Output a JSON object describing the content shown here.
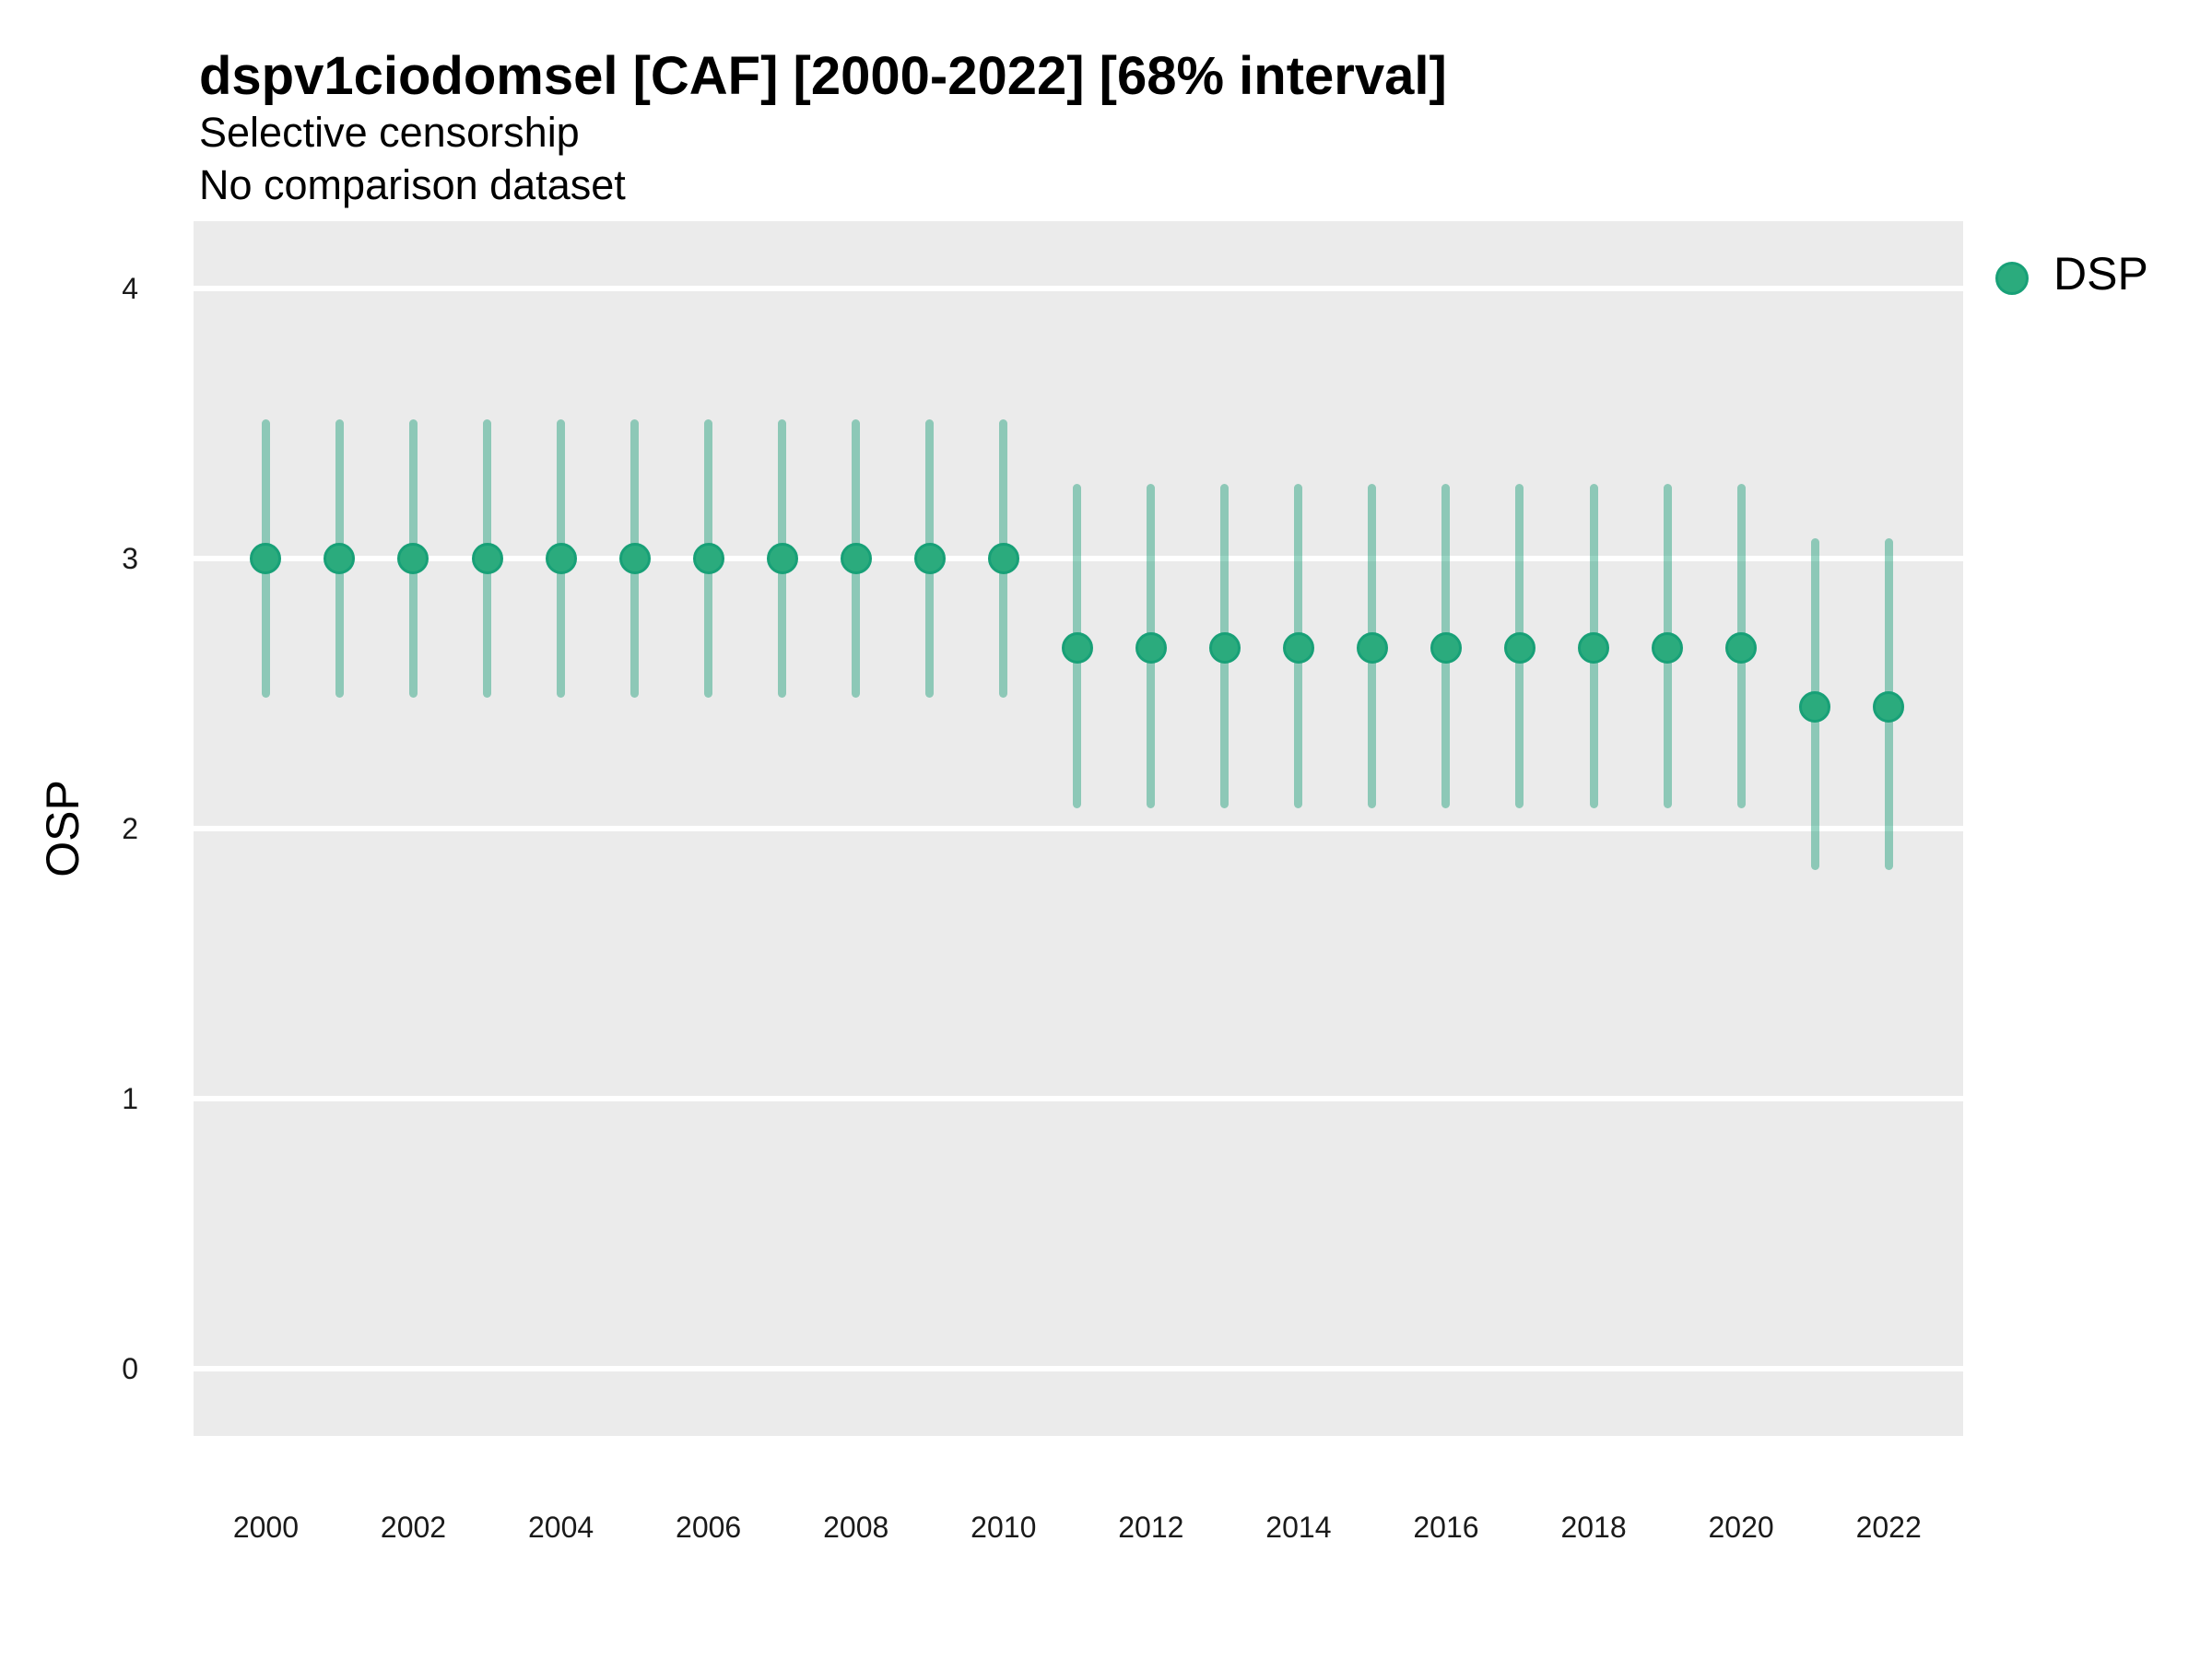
{
  "header": {
    "title": "dspv1ciodomsel [CAF] [2000-2022] [68% interval]",
    "subtitle": "Selective censorship",
    "note": "No comparison dataset"
  },
  "axes": {
    "y_label": "OSP",
    "y_tick_labels": [
      "0",
      "1",
      "2",
      "3",
      "4"
    ],
    "x_tick_labels": [
      "2000",
      "2002",
      "2004",
      "2006",
      "2008",
      "2010",
      "2012",
      "2014",
      "2016",
      "2018",
      "2020",
      "2022"
    ]
  },
  "legend": {
    "position": "right-top",
    "items": [
      {
        "label": "DSP",
        "marker": "circle"
      }
    ]
  },
  "colors": {
    "panel_background": "#ebebeb",
    "gridline": "#ffffff",
    "point_fill": "#2bab7d",
    "point_stroke": "#18a077",
    "interval_bar": "rgba(27,158,119,0.45)",
    "text": "#000000",
    "tick_text": "#1a1a1a"
  },
  "chart_data": {
    "type": "scatter",
    "subtype": "pointrange",
    "title": "dspv1ciodomsel [CAF] [2000-2022] [68% interval]",
    "subtitle": "Selective censorship",
    "note": "No comparison dataset",
    "xlabel": "",
    "ylabel": "OSP",
    "interval": "68%",
    "xlim": [
      1999.02,
      2023.01
    ],
    "ylim": [
      -0.25,
      4.25
    ],
    "x_ticks": [
      2000,
      2002,
      2004,
      2006,
      2008,
      2010,
      2012,
      2014,
      2016,
      2018,
      2020,
      2022
    ],
    "y_ticks": [
      0,
      1,
      2,
      3,
      4
    ],
    "grid": "major-only",
    "legend_position": "right-top",
    "series": [
      {
        "name": "DSP",
        "points": [
          {
            "x": 2000,
            "y": 3.0,
            "lo": 2.5,
            "hi": 3.5
          },
          {
            "x": 2001,
            "y": 3.0,
            "lo": 2.5,
            "hi": 3.5
          },
          {
            "x": 2002,
            "y": 3.0,
            "lo": 2.5,
            "hi": 3.5
          },
          {
            "x": 2003,
            "y": 3.0,
            "lo": 2.5,
            "hi": 3.5
          },
          {
            "x": 2004,
            "y": 3.0,
            "lo": 2.5,
            "hi": 3.5
          },
          {
            "x": 2005,
            "y": 3.0,
            "lo": 2.5,
            "hi": 3.5
          },
          {
            "x": 2006,
            "y": 3.0,
            "lo": 2.5,
            "hi": 3.5
          },
          {
            "x": 2007,
            "y": 3.0,
            "lo": 2.5,
            "hi": 3.5
          },
          {
            "x": 2008,
            "y": 3.0,
            "lo": 2.5,
            "hi": 3.5
          },
          {
            "x": 2009,
            "y": 3.0,
            "lo": 2.5,
            "hi": 3.5
          },
          {
            "x": 2010,
            "y": 3.0,
            "lo": 2.5,
            "hi": 3.5
          },
          {
            "x": 2011,
            "y": 2.67,
            "lo": 2.09,
            "hi": 3.26
          },
          {
            "x": 2012,
            "y": 2.67,
            "lo": 2.09,
            "hi": 3.26
          },
          {
            "x": 2013,
            "y": 2.67,
            "lo": 2.09,
            "hi": 3.26
          },
          {
            "x": 2014,
            "y": 2.67,
            "lo": 2.09,
            "hi": 3.26
          },
          {
            "x": 2015,
            "y": 2.67,
            "lo": 2.09,
            "hi": 3.26
          },
          {
            "x": 2016,
            "y": 2.67,
            "lo": 2.09,
            "hi": 3.26
          },
          {
            "x": 2017,
            "y": 2.67,
            "lo": 2.09,
            "hi": 3.26
          },
          {
            "x": 2018,
            "y": 2.67,
            "lo": 2.09,
            "hi": 3.26
          },
          {
            "x": 2019,
            "y": 2.67,
            "lo": 2.09,
            "hi": 3.26
          },
          {
            "x": 2020,
            "y": 2.67,
            "lo": 2.09,
            "hi": 3.26
          },
          {
            "x": 2021,
            "y": 2.45,
            "lo": 1.86,
            "hi": 3.06
          },
          {
            "x": 2022,
            "y": 2.45,
            "lo": 1.86,
            "hi": 3.06
          }
        ]
      }
    ]
  }
}
